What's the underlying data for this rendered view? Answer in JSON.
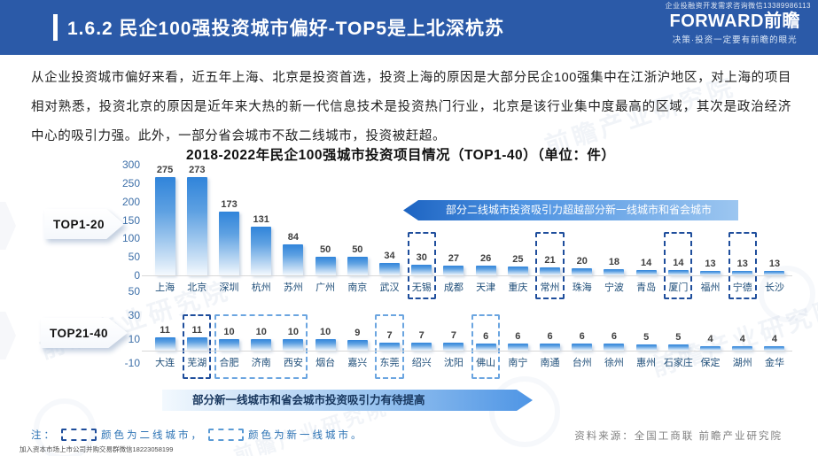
{
  "header": {
    "title": "1.6.2 民企100强投资城市偏好-TOP5是上北深杭苏",
    "mini_watermark": "企业投融资开发需求咨询微信13389986113",
    "logo_text": "FORWARD前瞻",
    "logo_slogan": "决策·投资一定要有前瞻的眼光"
  },
  "intro_paragraph": "从企业投资城市偏好来看，近五年上海、北京是投资首选，投资上海的原因是大部分民企100强集中在江浙沪地区，对上海的项目相对熟悉，投资北京的原因是近年来大热的新一代信息技术是投资热门行业，北京是该行业集中度最高的区域，其次是政治经济中心的吸引力强。此外，一部分省会城市不敌二线城市，投资被赶超。",
  "chart_title": "2018-2022年民企100强城市投资项目情况（TOP1-40）（单位：件）",
  "badges": {
    "top1_20": "TOP1-20",
    "top21_40": "TOP21-40"
  },
  "annotations": {
    "banner_top": "部分二线城市投资吸引力超越部分新一线城市和省会城市",
    "banner_bottom": "部分新一线城市和省会城市投资吸引力有待提高"
  },
  "chart_data": [
    {
      "type": "bar",
      "group": "TOP1-20",
      "categories": [
        "上海",
        "北京",
        "深圳",
        "杭州",
        "苏州",
        "广州",
        "南京",
        "武汉",
        "无锡",
        "成都",
        "天津",
        "重庆",
        "常州",
        "珠海",
        "宁波",
        "青岛",
        "厦门",
        "福州",
        "宁德",
        "长沙"
      ],
      "values": [
        275,
        273,
        173,
        131,
        84,
        50,
        50,
        34,
        30,
        27,
        26,
        25,
        21,
        20,
        18,
        14,
        14,
        13,
        13,
        13
      ],
      "ylim": [
        0,
        300
      ],
      "yticks": [
        300,
        250,
        200,
        150,
        100,
        50,
        0
      ],
      "grid": "baseline-only",
      "highlight_boxes": [
        {
          "start": 8,
          "end": 8,
          "tier": "tier2",
          "cities": "无锡"
        },
        {
          "start": 12,
          "end": 12,
          "tier": "tier2",
          "cities": "常州"
        },
        {
          "start": 16,
          "end": 16,
          "tier": "tier2",
          "cities": "厦门"
        },
        {
          "start": 18,
          "end": 18,
          "tier": "tier2",
          "cities": "宁德"
        }
      ]
    },
    {
      "type": "bar",
      "group": "TOP21-40",
      "categories": [
        "大连",
        "芜湖",
        "合肥",
        "济南",
        "西安",
        "烟台",
        "嘉兴",
        "东莞",
        "绍兴",
        "沈阳",
        "佛山",
        "南宁",
        "南通",
        "台州",
        "徐州",
        "惠州",
        "石家庄",
        "保定",
        "湖州",
        "金华"
      ],
      "values": [
        11,
        11,
        10,
        10,
        10,
        10,
        9,
        7,
        7,
        7,
        6,
        6,
        6,
        6,
        6,
        5,
        5,
        4,
        4,
        4
      ],
      "ylim": [
        -10,
        50
      ],
      "yticks": [
        50,
        30,
        10,
        -10
      ],
      "grid": "baseline-only",
      "highlight_boxes": [
        {
          "start": 1,
          "end": 1,
          "tier": "tier2",
          "cities": "芜湖"
        },
        {
          "start": 2,
          "end": 4,
          "tier": "new_tier1",
          "cities": "合肥、济南、西安"
        },
        {
          "start": 7,
          "end": 7,
          "tier": "new_tier1",
          "cities": "东莞"
        },
        {
          "start": 10,
          "end": 10,
          "tier": "new_tier1",
          "cities": "佛山"
        }
      ]
    }
  ],
  "legend_note": {
    "prefix": "注：",
    "tier2_label": "颜色为二线城市，",
    "new_tier1_label": "颜色为新一线城市。"
  },
  "source": "资料来源：全国工商联  前瞻产业研究院",
  "footer_micro_text": "加入资本市场上市公司并购交易群微信18223058199",
  "watermark_text": "前瞻产业研究院",
  "colors": {
    "header_bg": "#2B5AA8",
    "bar_gradient_top": "#3084DA",
    "bar_gradient_bottom": "#F4F9FE",
    "tier2_box": "#1F4E9C",
    "new_tier1_box": "#6BA5E0",
    "axis_label": "#3D6FA8",
    "city_label": "#1F4E79",
    "banner_top_bg": "#4E93E2",
    "banner_bottom_bg": "#4E95E5",
    "note_text": "#2E74B5",
    "source_text": "#808080"
  }
}
